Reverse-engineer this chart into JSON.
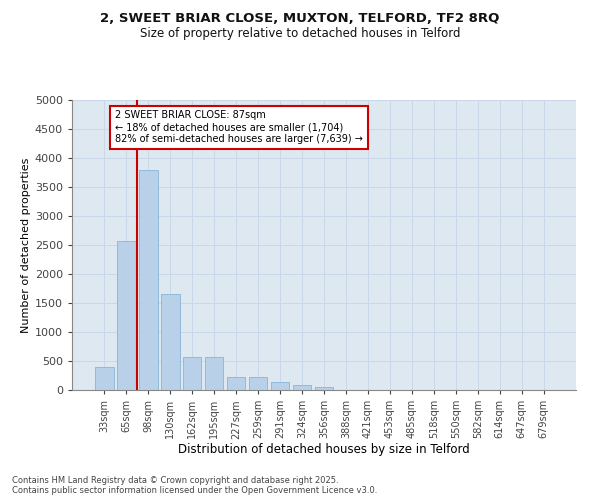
{
  "title_line1": "2, SWEET BRIAR CLOSE, MUXTON, TELFORD, TF2 8RQ",
  "title_line2": "Size of property relative to detached houses in Telford",
  "xlabel": "Distribution of detached houses by size in Telford",
  "ylabel": "Number of detached properties",
  "footer_line1": "Contains HM Land Registry data © Crown copyright and database right 2025.",
  "footer_line2": "Contains public sector information licensed under the Open Government Licence v3.0.",
  "categories": [
    "33sqm",
    "65sqm",
    "98sqm",
    "130sqm",
    "162sqm",
    "195sqm",
    "227sqm",
    "259sqm",
    "291sqm",
    "324sqm",
    "356sqm",
    "388sqm",
    "421sqm",
    "453sqm",
    "485sqm",
    "518sqm",
    "550sqm",
    "582sqm",
    "614sqm",
    "647sqm",
    "679sqm"
  ],
  "values": [
    390,
    2570,
    3800,
    1650,
    570,
    570,
    220,
    220,
    130,
    90,
    50,
    0,
    0,
    0,
    0,
    0,
    0,
    0,
    0,
    0,
    0
  ],
  "bar_color": "#b8d0e8",
  "bar_edge_color": "#7aaed4",
  "grid_color": "#c8d8e8",
  "background_color": "#dde8f0",
  "vline_x": 1.5,
  "vline_color": "#cc0000",
  "annotation_text": "2 SWEET BRIAR CLOSE: 87sqm\n← 18% of detached houses are smaller (1,704)\n82% of semi-detached houses are larger (7,639) →",
  "annotation_box_color": "#cc0000",
  "ylim": [
    0,
    5000
  ],
  "yticks": [
    0,
    500,
    1000,
    1500,
    2000,
    2500,
    3000,
    3500,
    4000,
    4500,
    5000
  ]
}
